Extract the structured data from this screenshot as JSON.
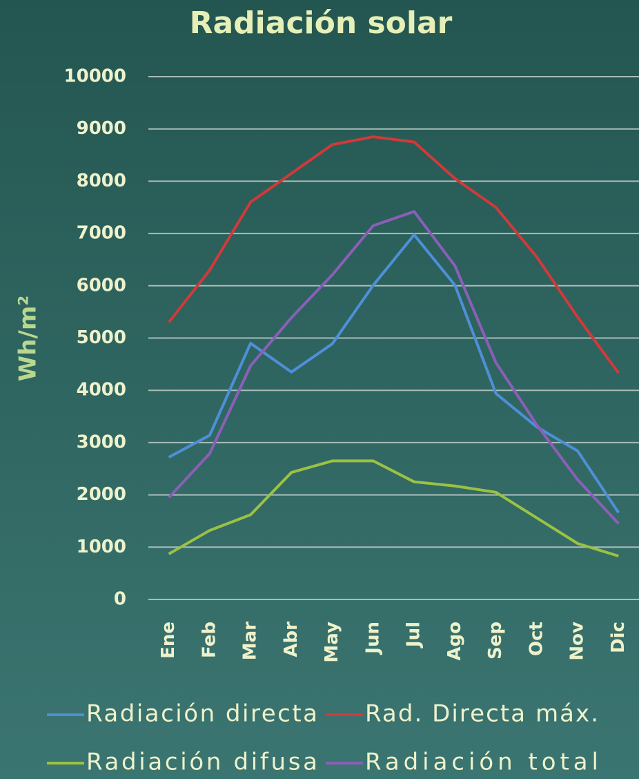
{
  "chart_data": {
    "type": "line",
    "title": "Radiación solar",
    "y_label": "Wh/m²",
    "categories": [
      "Ene",
      "Feb",
      "Mar",
      "Abr",
      "May",
      "Jun",
      "Jul",
      "Ago",
      "Sep",
      "Oct",
      "Nov",
      "Dic"
    ],
    "series": [
      {
        "name": "Radiación directa",
        "color": "#4f8fd8",
        "values": [
          2720,
          3140,
          4900,
          4350,
          4890,
          6010,
          6975,
          6010,
          3940,
          3300,
          2840,
          1660
        ]
      },
      {
        "name": "Rad. Directa máx.",
        "color": "#d03a3a",
        "values": [
          5300,
          6300,
          7600,
          8150,
          8700,
          8850,
          8750,
          8050,
          7500,
          6550,
          5400,
          4330
        ]
      },
      {
        "name": "Radiación difusa",
        "color": "#9bc242",
        "values": [
          870,
          1320,
          1620,
          2430,
          2650,
          2650,
          2250,
          2170,
          2050,
          1560,
          1070,
          830
        ]
      },
      {
        "name": "Radiación total",
        "color": "#8a5fb8",
        "values": [
          1950,
          2790,
          4470,
          5390,
          6210,
          7150,
          7420,
          6380,
          4530,
          3340,
          2290,
          1450
        ]
      }
    ],
    "ylim": [
      0,
      10000
    ],
    "yticks": [
      0,
      1000,
      2000,
      3000,
      4000,
      5000,
      6000,
      7000,
      8000,
      9000,
      10000
    ],
    "grid": true,
    "legend": "bottom"
  }
}
